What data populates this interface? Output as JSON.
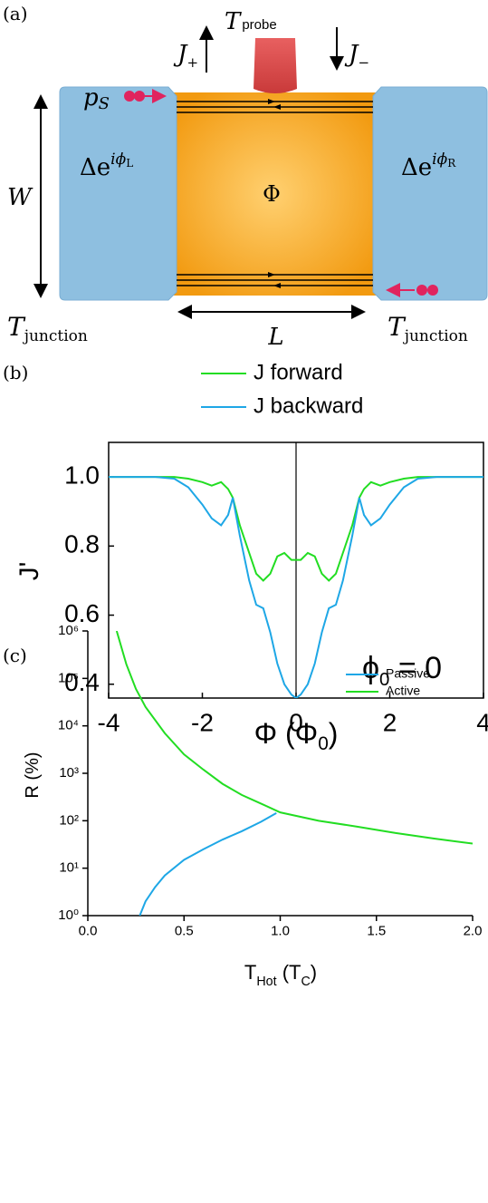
{
  "diagram": {
    "label": "(a)",
    "t_probe": {
      "base": "T",
      "sub": "probe"
    },
    "j_plus": {
      "base": "J",
      "sub": "+"
    },
    "j_minus": {
      "base": "J",
      "sub": "−"
    },
    "p_s": {
      "base": "p",
      "sub": "S"
    },
    "gap_left": {
      "base": "Δe",
      "sup": "iϕ",
      "supsub": "L"
    },
    "gap_right": {
      "base": "Δe",
      "sup": "iϕ",
      "supsub": "R"
    },
    "flux": "Φ",
    "width": "W",
    "length": "L",
    "t_junction_left": {
      "base": "T",
      "sub": "junction"
    },
    "t_junction_right": {
      "base": "T",
      "sub": "junction"
    }
  },
  "chart_data": [
    {
      "type": "line",
      "panel": "(b)",
      "y_label": "J'",
      "x_label": [
        "Φ (Φ",
        "0",
        ")"
      ],
      "annotation": [
        "ϕ",
        "0",
        " = 0"
      ],
      "x": [
        -4,
        -3.5,
        -3,
        -2.6,
        -2.3,
        -2.0,
        -1.8,
        -1.6,
        -1.45,
        -1.35,
        -1.2,
        -1.0,
        -0.85,
        -0.7,
        -0.55,
        -0.4,
        -0.25,
        -0.1,
        0,
        0.1,
        0.25,
        0.4,
        0.55,
        0.7,
        0.85,
        1.0,
        1.2,
        1.35,
        1.45,
        1.6,
        1.8,
        2.0,
        2.3,
        2.6,
        3,
        3.5,
        4
      ],
      "series": [
        {
          "name": "J forward",
          "color": "#22dd22",
          "values": [
            1.0,
            1.0,
            1.0,
            1.0,
            0.995,
            0.985,
            0.975,
            0.985,
            0.965,
            0.94,
            0.86,
            0.78,
            0.72,
            0.7,
            0.72,
            0.77,
            0.78,
            0.76,
            0.76,
            0.76,
            0.78,
            0.77,
            0.72,
            0.7,
            0.72,
            0.78,
            0.86,
            0.94,
            0.965,
            0.985,
            0.975,
            0.985,
            0.995,
            1.0,
            1.0,
            1.0,
            1.0
          ]
        },
        {
          "name": "J backward",
          "color": "#1ea7e6",
          "values": [
            1.0,
            1.0,
            1.0,
            0.995,
            0.97,
            0.92,
            0.88,
            0.86,
            0.89,
            0.94,
            0.83,
            0.7,
            0.63,
            0.62,
            0.55,
            0.46,
            0.4,
            0.37,
            0.36,
            0.37,
            0.4,
            0.46,
            0.55,
            0.62,
            0.63,
            0.7,
            0.83,
            0.94,
            0.89,
            0.86,
            0.88,
            0.92,
            0.97,
            0.995,
            1.0,
            1.0,
            1.0
          ]
        }
      ],
      "xlim": [
        -4,
        4
      ],
      "ylim": [
        0.36,
        1.1
      ],
      "xticks": [
        -4,
        -2,
        0,
        2,
        4
      ],
      "yticks": [
        0.4,
        0.6,
        0.8,
        {
          "value": 1,
          "label": "1.0"
        }
      ],
      "vline": 0,
      "legend": "top"
    },
    {
      "type": "line",
      "panel": "(c)",
      "log_y": true,
      "y_label": "R (%)",
      "x_label": [
        "T",
        "Hot",
        " (T",
        "C",
        ")"
      ],
      "series": [
        {
          "name": "Passive",
          "color": "#1ea7e6",
          "x": [
            0.27,
            0.3,
            0.35,
            0.4,
            0.5,
            0.6,
            0.7,
            0.8,
            0.9,
            0.98
          ],
          "values": [
            1,
            2,
            4,
            7,
            15,
            25,
            40,
            60,
            95,
            145
          ]
        },
        {
          "name": "Active",
          "color": "#22dd22",
          "x": [
            0.15,
            0.2,
            0.25,
            0.3,
            0.4,
            0.5,
            0.6,
            0.7,
            0.8,
            0.9,
            1.0,
            1.2,
            1.4,
            1.6,
            1.8,
            2.0
          ],
          "values": [
            1000000,
            200000,
            60000,
            25000,
            7000,
            2500,
            1200,
            600,
            350,
            230,
            150,
            100,
            75,
            55,
            42,
            33
          ]
        }
      ],
      "xlim": [
        0,
        2
      ],
      "ylim": [
        1,
        1000000
      ],
      "xticks": [
        {
          "value": 0,
          "label": "0.0"
        },
        0.5,
        {
          "value": 1,
          "label": "1.0"
        },
        1.5,
        {
          "value": 2,
          "label": "2.0"
        }
      ],
      "yticks": [
        {
          "value": 1,
          "label": "10⁰"
        },
        {
          "value": 10,
          "label": "10¹"
        },
        {
          "value": 100,
          "label": "10²"
        },
        {
          "value": 1000,
          "label": "10³"
        },
        {
          "value": 10000,
          "label": "10⁴"
        },
        {
          "value": 100000,
          "label": "10⁵"
        },
        {
          "value": 1000000,
          "label": "10⁶"
        }
      ],
      "legend": "upper right"
    }
  ]
}
